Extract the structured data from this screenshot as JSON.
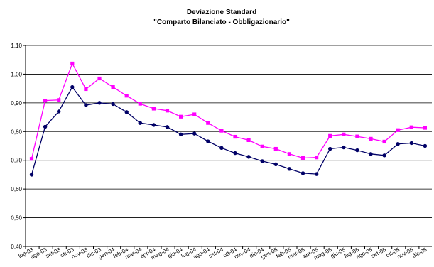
{
  "chart_data": {
    "type": "line",
    "title": "Deviazione Standard",
    "subtitle": "\"Comparto Bilanciato - Obbligazionario\"",
    "xlabel": "",
    "ylabel": "",
    "ylim": [
      0.4,
      1.1
    ],
    "y_ticks": [
      "0,40",
      "0,50",
      "0,60",
      "0,70",
      "0,80",
      "0,90",
      "1,00",
      "1,10"
    ],
    "y_tick_values": [
      0.4,
      0.5,
      0.6,
      0.7,
      0.8,
      0.9,
      1.0,
      1.1
    ],
    "grid": true,
    "legend": "none",
    "categories": [
      "lug-03",
      "ago-03",
      "set-03",
      "ott-03",
      "nov-03",
      "dic-03",
      "gen-04",
      "feb-04",
      "mar-04",
      "apr-04",
      "mag-04",
      "giu-04",
      "lug-04",
      "ago-04",
      "set-04",
      "ott-04",
      "nov-04",
      "dic-04",
      "gen-05",
      "feb-05",
      "mar-05",
      "apr-05",
      "mag-05",
      "giu-05",
      "lug-05",
      "ago-05",
      "set-05",
      "ott-05",
      "nov-05",
      "dic-05"
    ],
    "series": [
      {
        "color": "#ff00ff",
        "marker": "square",
        "values": [
          0.705,
          0.908,
          0.91,
          1.037,
          0.948,
          0.985,
          0.955,
          0.925,
          0.897,
          0.88,
          0.873,
          0.852,
          0.86,
          0.83,
          0.803,
          0.782,
          0.77,
          0.748,
          0.74,
          0.722,
          0.708,
          0.71,
          0.785,
          0.79,
          0.783,
          0.775,
          0.765,
          0.805,
          0.815,
          0.813
        ]
      },
      {
        "color": "#000066",
        "marker": "circle",
        "values": [
          0.65,
          0.817,
          0.87,
          0.955,
          0.892,
          0.9,
          0.896,
          0.868,
          0.83,
          0.823,
          0.816,
          0.79,
          0.793,
          0.766,
          0.743,
          0.725,
          0.712,
          0.697,
          0.686,
          0.67,
          0.655,
          0.652,
          0.74,
          0.745,
          0.735,
          0.722,
          0.717,
          0.757,
          0.76,
          0.75
        ]
      }
    ]
  }
}
